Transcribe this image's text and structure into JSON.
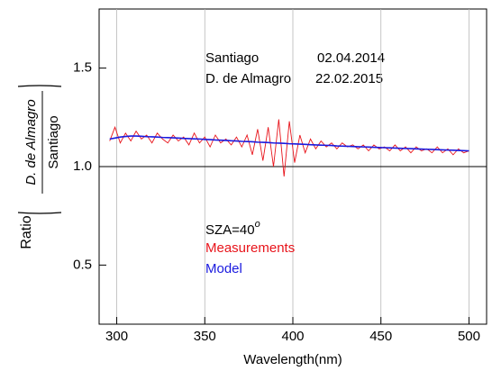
{
  "chart_data": {
    "type": "line",
    "xlabel": "Wavelength(nm)",
    "ylabel_prefix": "Ratio",
    "ylabel_numerator": "D. de Almagro",
    "ylabel_denominator": "Santiago",
    "annotations": [
      {
        "site": "Santiago",
        "date": "02.04.2014"
      },
      {
        "site": "D. de Almagro",
        "date": "22.02.2015"
      }
    ],
    "sza_label": "SZA=40",
    "sza_superscript": "o",
    "xlim": [
      290,
      510
    ],
    "ylim": [
      0.2,
      1.8
    ],
    "xticks": [
      300,
      350,
      400,
      450,
      500
    ],
    "yticks": [
      0.5,
      {
        "value": 1,
        "label": "1.0"
      },
      1.5
    ],
    "grid": "x",
    "reference_line": 1,
    "x": [
      296,
      299,
      302,
      305,
      308,
      311,
      314,
      317,
      320,
      323,
      326,
      329,
      332,
      335,
      338,
      341,
      344,
      347,
      350,
      353,
      356,
      359,
      362,
      365,
      368,
      371,
      374,
      377,
      380,
      383,
      386,
      389,
      392,
      395,
      398,
      401,
      404,
      407,
      410,
      413,
      416,
      419,
      422,
      425,
      428,
      431,
      434,
      437,
      440,
      443,
      446,
      449,
      452,
      455,
      458,
      461,
      464,
      467,
      470,
      473,
      476,
      479,
      482,
      485,
      488,
      491,
      494,
      497,
      500
    ],
    "series": [
      {
        "name": "Measurements",
        "color": "#e8141b",
        "values": [
          1.13,
          1.2,
          1.12,
          1.17,
          1.13,
          1.18,
          1.14,
          1.16,
          1.12,
          1.17,
          1.14,
          1.12,
          1.16,
          1.13,
          1.15,
          1.11,
          1.17,
          1.12,
          1.15,
          1.1,
          1.16,
          1.12,
          1.14,
          1.11,
          1.15,
          1.1,
          1.16,
          1.06,
          1.19,
          1.03,
          1.2,
          1.0,
          1.24,
          0.95,
          1.23,
          1.02,
          1.16,
          1.07,
          1.14,
          1.09,
          1.13,
          1.1,
          1.12,
          1.09,
          1.12,
          1.1,
          1.11,
          1.09,
          1.11,
          1.08,
          1.11,
          1.09,
          1.1,
          1.08,
          1.11,
          1.08,
          1.1,
          1.07,
          1.1,
          1.08,
          1.09,
          1.07,
          1.1,
          1.07,
          1.09,
          1.06,
          1.09,
          1.07,
          1.08
        ]
      },
      {
        "name": "Model",
        "color": "#1a1adf",
        "values": [
          1.14,
          1.145,
          1.15,
          1.153,
          1.155,
          1.155,
          1.154,
          1.152,
          1.151,
          1.15,
          1.148,
          1.147,
          1.146,
          1.145,
          1.143,
          1.142,
          1.141,
          1.14,
          1.138,
          1.137,
          1.135,
          1.134,
          1.133,
          1.131,
          1.13,
          1.128,
          1.127,
          1.126,
          1.124,
          1.123,
          1.122,
          1.12,
          1.119,
          1.118,
          1.116,
          1.115,
          1.114,
          1.113,
          1.111,
          1.11,
          1.109,
          1.108,
          1.107,
          1.105,
          1.104,
          1.103,
          1.102,
          1.101,
          1.1,
          1.099,
          1.098,
          1.097,
          1.096,
          1.095,
          1.094,
          1.093,
          1.092,
          1.091,
          1.09,
          1.089,
          1.088,
          1.087,
          1.086,
          1.085,
          1.084,
          1.083,
          1.082,
          1.081,
          1.08
        ]
      }
    ]
  }
}
